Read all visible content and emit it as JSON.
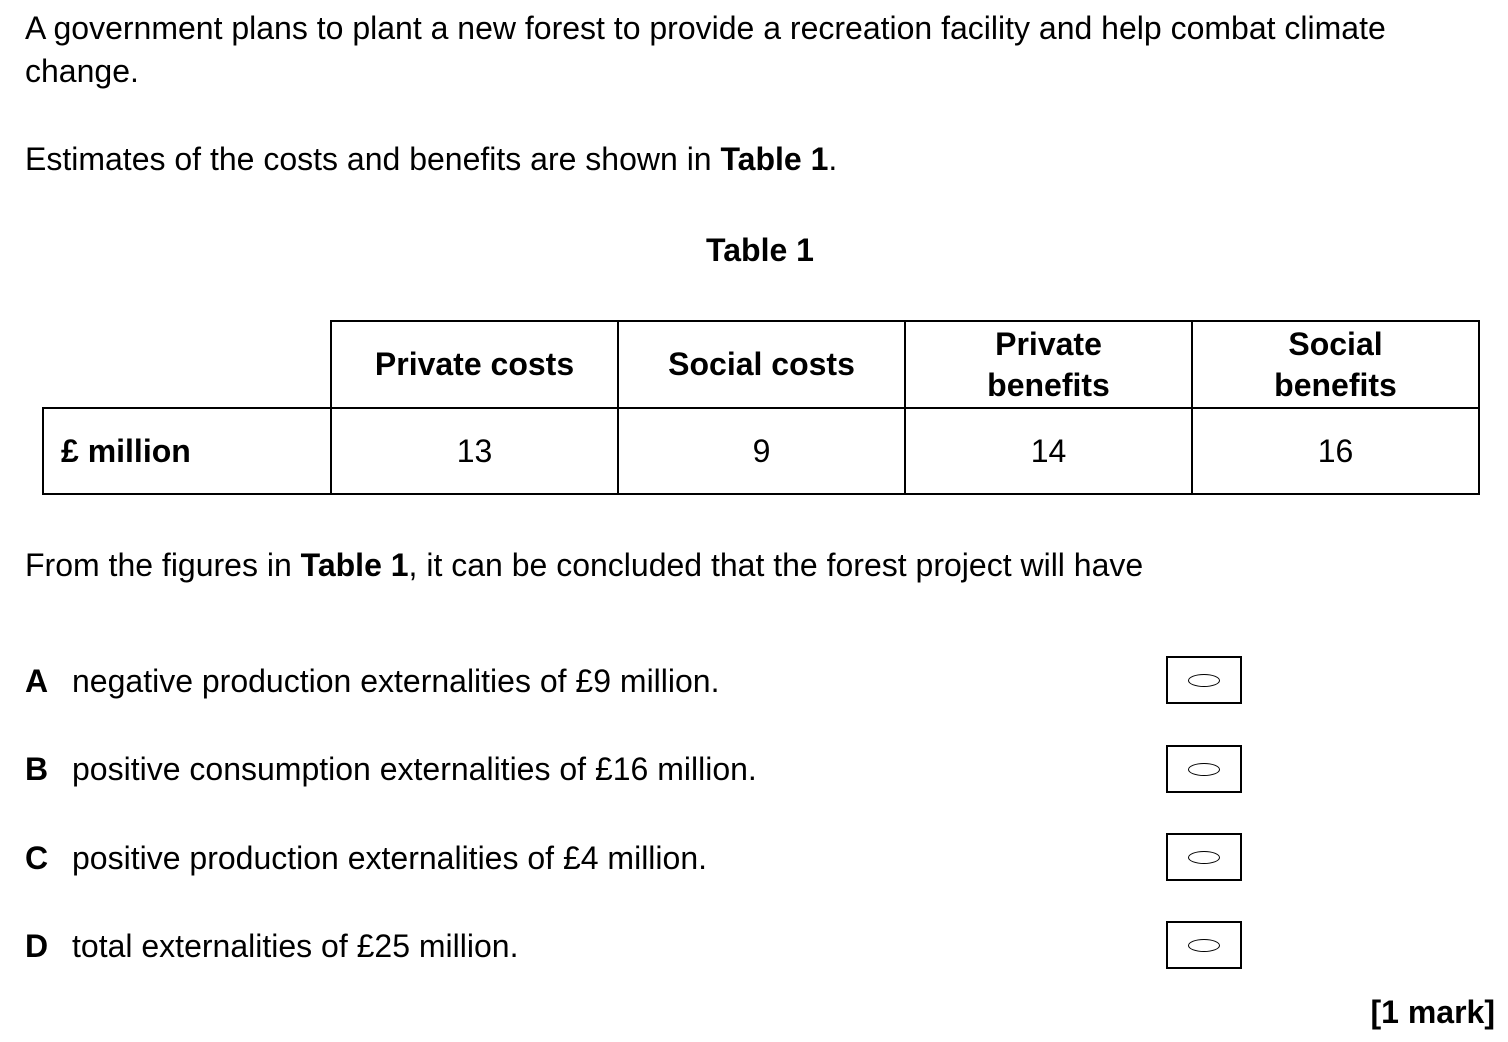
{
  "question": {
    "intro": "A government plans to plant a new forest to provide a recreation facility and help combat climate change.",
    "estimates": {
      "before": "Estimates of the costs and benefits are shown in ",
      "ref": "Table 1",
      "after": "."
    },
    "table_title": "Table 1",
    "table": {
      "headers": [
        "Private costs",
        "Social costs",
        "Private benefits",
        "Social benefits"
      ],
      "header_lines": [
        [
          "Private costs"
        ],
        [
          "Social costs"
        ],
        [
          "Private",
          "benefits"
        ],
        [
          "Social",
          "benefits"
        ]
      ],
      "row_label": "£ million",
      "values": [
        "13",
        "9",
        "14",
        "16"
      ]
    },
    "lead": {
      "before": "From the figures in ",
      "ref": "Table 1",
      "after": ", it can be concluded that the forest project will have"
    },
    "options": [
      {
        "letter": "A",
        "text": "negative production externalities of £9 million."
      },
      {
        "letter": "B",
        "text": "positive consumption externalities of £16 million."
      },
      {
        "letter": "C",
        "text": "positive production externalities of £4 million."
      },
      {
        "letter": "D",
        "text": "total externalities of £25 million."
      }
    ],
    "marks": "[1 mark]"
  }
}
